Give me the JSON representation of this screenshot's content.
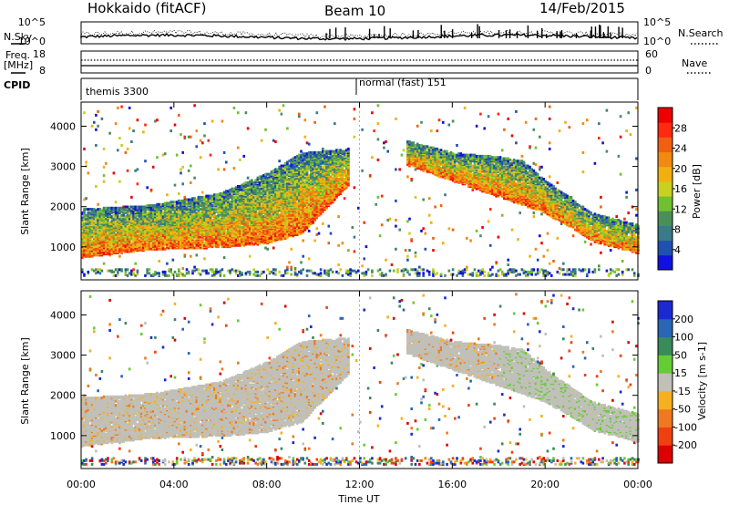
{
  "header": {
    "radar": "Hokkaido (fitACF)",
    "beam": "Beam 10",
    "date": "14/Feb/2015"
  },
  "noise_panel": {
    "left_label": "N.Sky",
    "right_label": "N.Search",
    "ytick_top": "10^5",
    "ytick_bottom": "10^0"
  },
  "freq_panel": {
    "left_label": "Freq.",
    "left_unit": "[MHz]",
    "left_ticks": [
      "18",
      "8"
    ],
    "right_label": "Nave",
    "right_ticks": [
      "60",
      "0"
    ]
  },
  "cpid_panel": {
    "label": "CPID",
    "modes": [
      {
        "text": "themis 3300",
        "start_hour": 0
      },
      {
        "text": "normal (fast) 151",
        "start_hour": 12
      }
    ]
  },
  "time_axis": {
    "label": "Time UT",
    "ticks": [
      "00:00",
      "04:00",
      "08:00",
      "12:00",
      "16:00",
      "20:00",
      "00:00"
    ]
  },
  "range_axis": {
    "label": "Slant Range [km]",
    "ticks": [
      "1000",
      "2000",
      "3000",
      "4000"
    ]
  },
  "power_colorbar": {
    "label": "Power [dB]",
    "ticks": [
      "4",
      "8",
      "12",
      "16",
      "20",
      "24",
      "28"
    ],
    "colors": [
      "#1010e0",
      "#2050b0",
      "#3a7a8a",
      "#4a8f5a",
      "#70c030",
      "#c8d020",
      "#f2b010",
      "#f08a10",
      "#f06010",
      "#ff2a10",
      "#ee0000"
    ]
  },
  "velocity_colorbar": {
    "label": "Velocity [m s-1]",
    "ticks": [
      "200",
      "100",
      "50",
      "15",
      "-15",
      "-50",
      "-100",
      "-200"
    ],
    "colors": [
      "#1a2ad0",
      "#2a66b4",
      "#3a8a5a",
      "#66cc33",
      "#c0c0b8",
      "#f5b020",
      "#f07820",
      "#f04010",
      "#dd0000"
    ]
  },
  "chart_data": [
    {
      "type": "heatmap",
      "title": "",
      "xlabel": "Time UT",
      "ylabel": "Slant Range [km]",
      "xlim": [
        0,
        24
      ],
      "ylim": [
        180,
        4600
      ],
      "colorbar": "Power [dB]",
      "colorbar_range": [
        0,
        30
      ],
      "features": [
        {
          "name": "",
          "x_hours": [
            0,
            3,
            6,
            8,
            9.5,
            11.5
          ],
          "y_km_low": [
            700,
            900,
            950,
            1050,
            1300,
            2500
          ],
          "y_km_high": [
            1900,
            2000,
            2300,
            2800,
            3300,
            3400
          ]
        },
        {
          "name": "",
          "x_hours": [
            14,
            16,
            18,
            19,
            20,
            22,
            24
          ],
          "y_km_low": [
            3000,
            2600,
            2200,
            2000,
            1800,
            1100,
            800
          ],
          "y_km_high": [
            3600,
            3300,
            3200,
            3100,
            2600,
            1800,
            1500
          ]
        }
      ]
    },
    {
      "type": "heatmap",
      "title": "",
      "xlabel": "Time UT",
      "ylabel": "Slant Range [km]",
      "xlim": [
        0,
        24
      ],
      "ylim": [
        180,
        4600
      ],
      "colorbar": "Velocity [m s-1]",
      "colorbar_range": [
        -200,
        200
      ]
    }
  ]
}
